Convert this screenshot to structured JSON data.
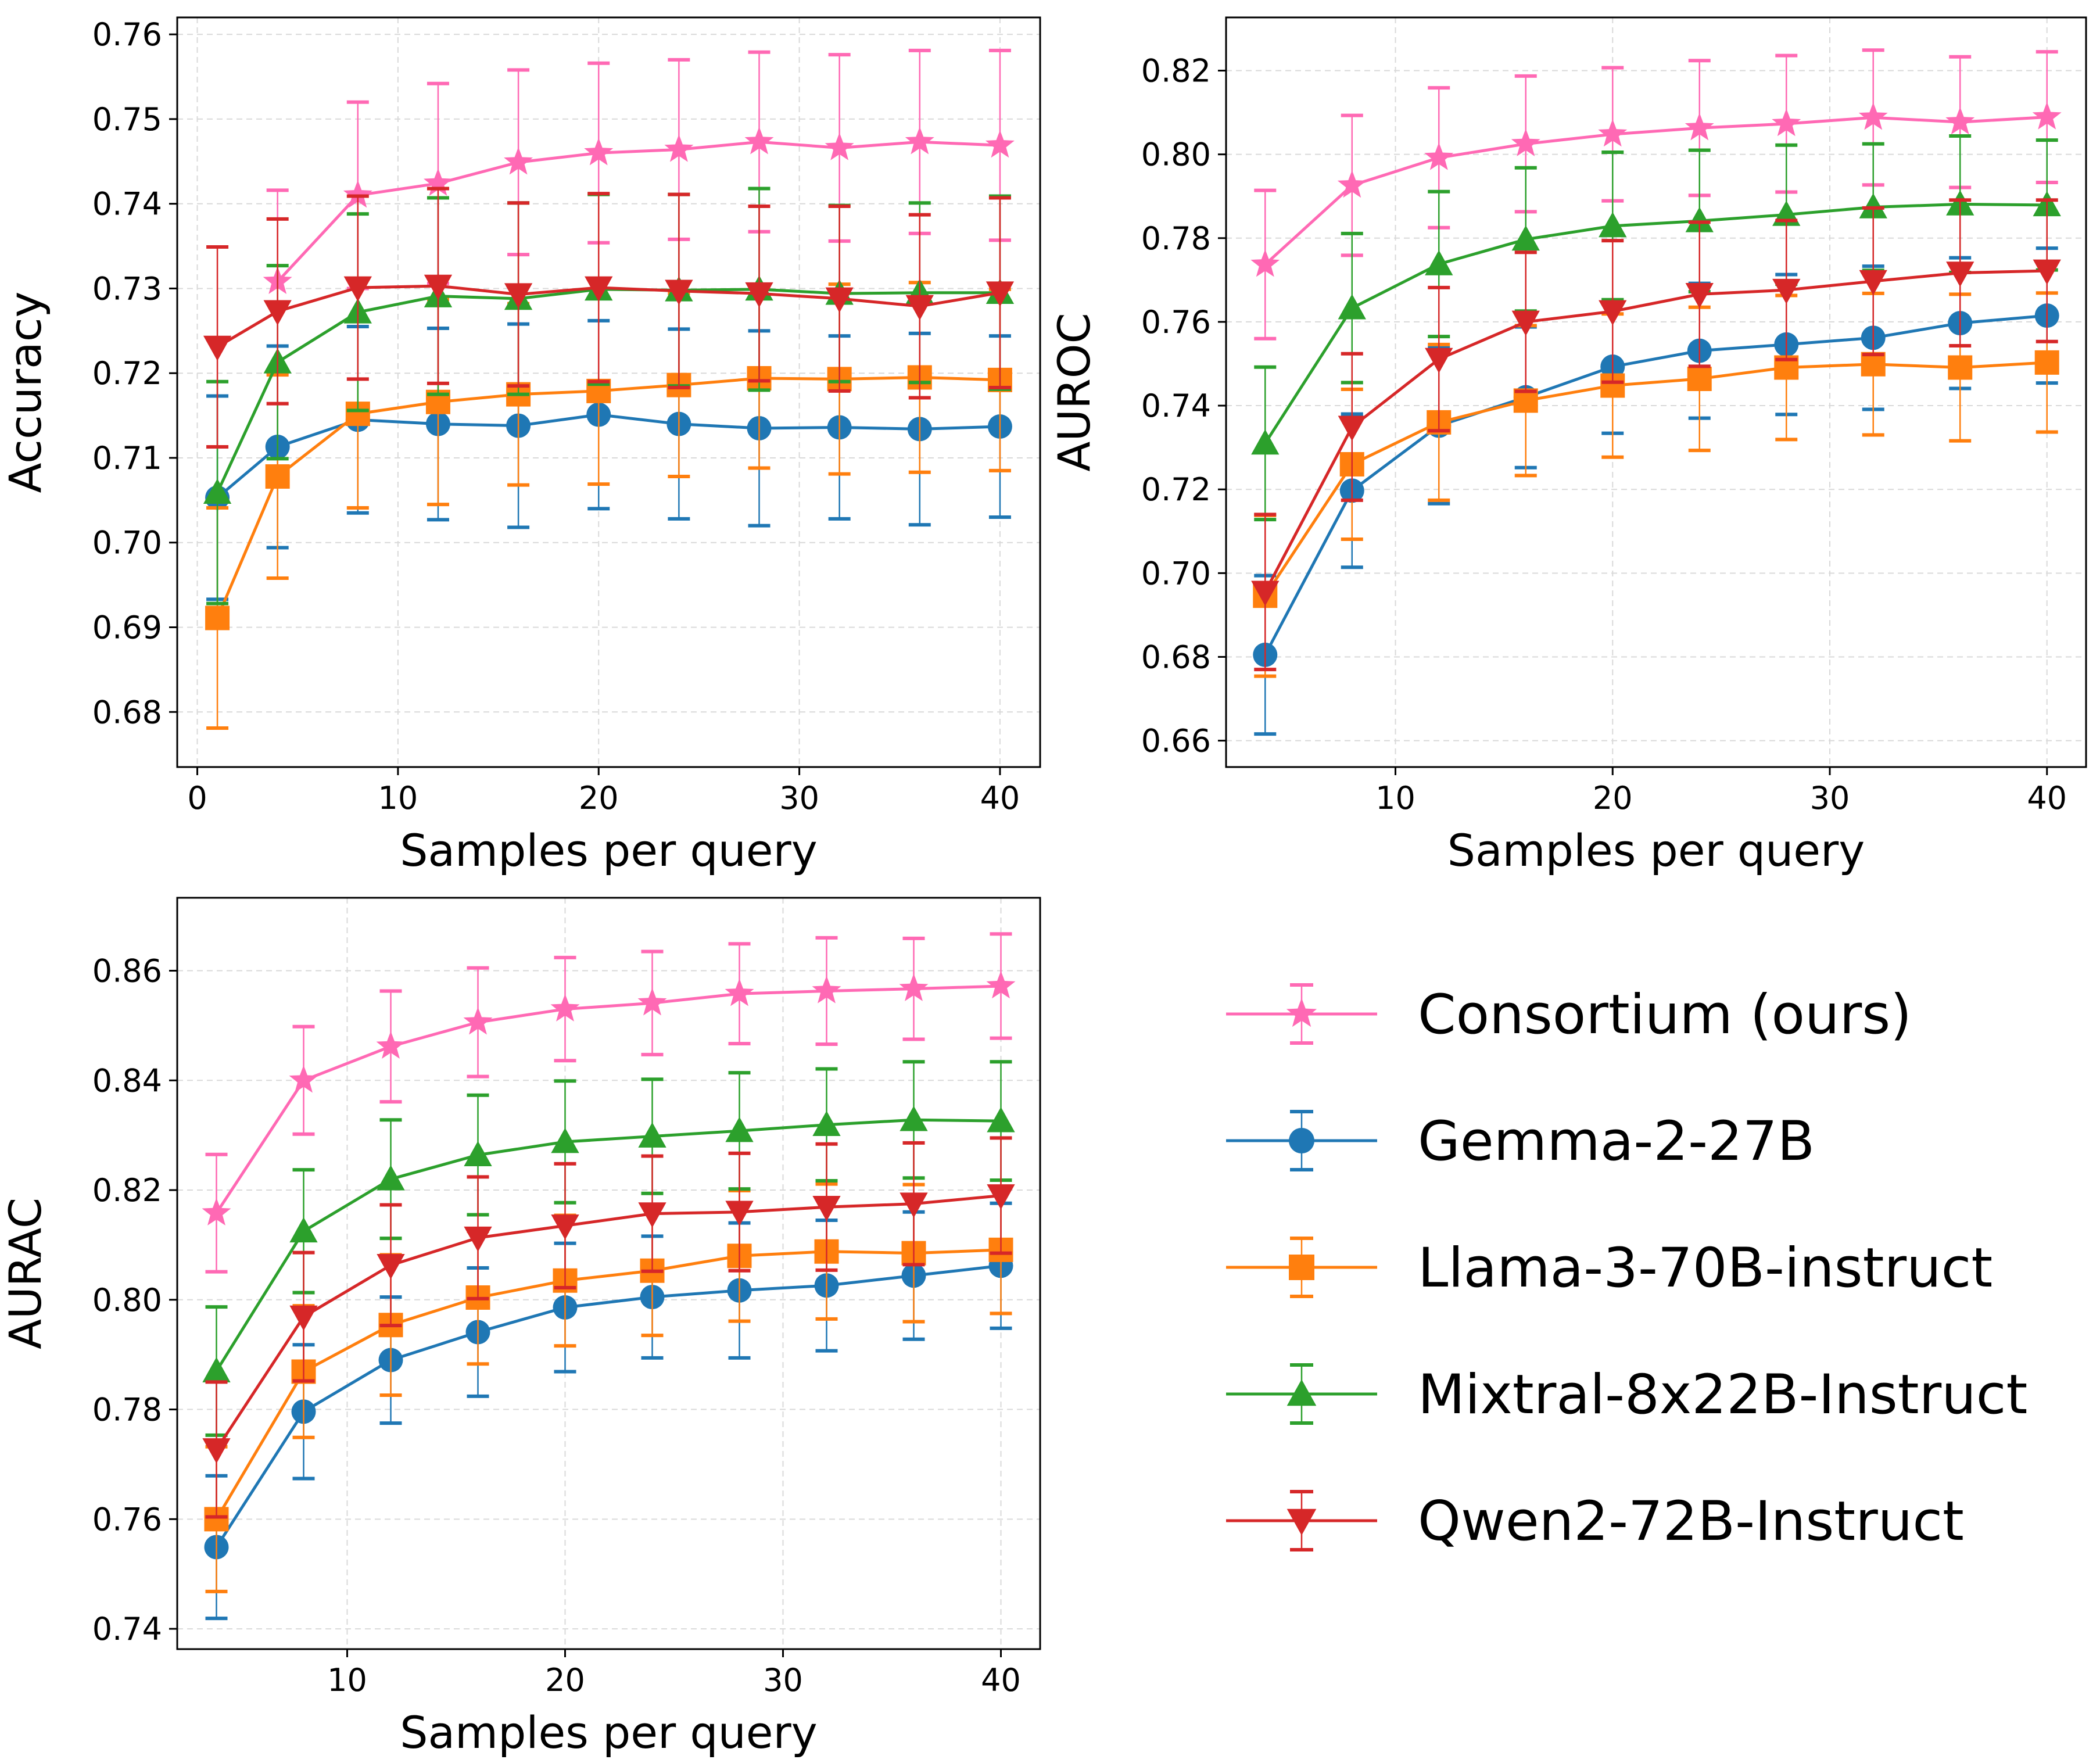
{
  "chart_data": [
    {
      "type": "line",
      "panel": "top-left",
      "xlabel": "Samples per query",
      "ylabel": "Accuracy",
      "xlim": [
        -1,
        42
      ],
      "ylim": [
        0.6735,
        0.762
      ],
      "xticks": [
        0,
        10,
        20,
        30,
        40
      ],
      "yticks": [
        0.68,
        0.69,
        0.7,
        0.71,
        0.72,
        0.73,
        0.74,
        0.75,
        0.76
      ],
      "ytick_decimals": 2,
      "grid": true,
      "x": [
        1,
        4,
        8,
        12,
        16,
        20,
        24,
        28,
        32,
        36,
        40
      ],
      "series": [
        {
          "name": "Consortium (ours)",
          "color": "#ff69b4",
          "marker": "star",
          "values": [
            null,
            0.7308,
            0.741,
            0.7424,
            0.7449,
            0.746,
            0.7464,
            0.7473,
            0.7466,
            0.7473,
            0.7469
          ],
          "err": [
            null,
            0.0108,
            0.011,
            0.0118,
            0.0109,
            0.0106,
            0.0106,
            0.0106,
            0.011,
            0.0108,
            0.0112
          ]
        },
        {
          "name": "Gemma-2-27B",
          "color": "#1f77b4",
          "marker": "circle",
          "values": [
            0.7053,
            0.7113,
            0.7145,
            0.714,
            0.7138,
            0.7151,
            0.714,
            0.7135,
            0.7136,
            0.7134,
            0.7137
          ],
          "err": [
            0.012,
            0.0119,
            0.011,
            0.0113,
            0.012,
            0.0111,
            0.0112,
            0.0115,
            0.0108,
            0.0113,
            0.0107
          ]
        },
        {
          "name": "Llama-3-70B-instruct",
          "color": "#ff7f0e",
          "marker": "square",
          "values": [
            0.6911,
            0.7078,
            0.7152,
            0.7166,
            0.7175,
            0.7179,
            0.7186,
            0.7194,
            0.7193,
            0.7195,
            0.7192
          ],
          "err": [
            0.013,
            0.012,
            0.0111,
            0.0121,
            0.0107,
            0.011,
            0.0108,
            0.0106,
            0.0112,
            0.0112,
            0.0107
          ]
        },
        {
          "name": "Mixtral-8x22B-Instruct",
          "color": "#2ca02c",
          "marker": "triangle-up",
          "values": [
            0.7059,
            0.7213,
            0.7272,
            0.7291,
            0.7288,
            0.7299,
            0.7298,
            0.7299,
            0.7294,
            0.7295,
            0.7295
          ],
          "err": [
            0.0131,
            0.0114,
            0.0116,
            0.0116,
            0.0113,
            0.0112,
            0.0113,
            0.0119,
            0.0104,
            0.0106,
            0.0114
          ]
        },
        {
          "name": "Qwen2-72B-Instruct",
          "color": "#d62728",
          "marker": "triangle-down",
          "values": [
            0.7231,
            0.7273,
            0.7301,
            0.7303,
            0.7293,
            0.7301,
            0.7297,
            0.7294,
            0.7288,
            0.7279,
            0.7295
          ],
          "err": [
            0.0118,
            0.0109,
            0.0108,
            0.0115,
            0.0108,
            0.0111,
            0.0114,
            0.0103,
            0.0109,
            0.0108,
            0.0112
          ]
        }
      ]
    },
    {
      "type": "line",
      "panel": "top-right",
      "xlabel": "Samples per query",
      "ylabel": "AUROC",
      "xlim": [
        2.2,
        41.8
      ],
      "ylim": [
        0.6537,
        0.8327
      ],
      "xticks": [
        10,
        20,
        30,
        40
      ],
      "yticks": [
        0.66,
        0.68,
        0.7,
        0.72,
        0.74,
        0.76,
        0.78,
        0.8,
        0.82
      ],
      "ytick_decimals": 2,
      "grid": true,
      "x": [
        4,
        8,
        12,
        16,
        20,
        24,
        28,
        32,
        36,
        40
      ],
      "series": [
        {
          "name": "Consortium (ours)",
          "color": "#ff69b4",
          "marker": "star",
          "values": [
            0.7737,
            0.7926,
            0.7992,
            0.8025,
            0.8048,
            0.8063,
            0.8073,
            0.8088,
            0.8077,
            0.8089
          ],
          "err": [
            0.0177,
            0.0167,
            0.0167,
            0.0162,
            0.0159,
            0.0161,
            0.0163,
            0.0161,
            0.0156,
            0.0156
          ]
        },
        {
          "name": "Gemma-2-27B",
          "color": "#1f77b4",
          "marker": "circle",
          "values": [
            0.6805,
            0.7197,
            0.7352,
            0.742,
            0.7493,
            0.7531,
            0.7546,
            0.7562,
            0.7597,
            0.7615
          ],
          "err": [
            0.0189,
            0.0183,
            0.0186,
            0.0168,
            0.0159,
            0.0161,
            0.0167,
            0.0171,
            0.0156,
            0.0161
          ]
        },
        {
          "name": "Llama-3-70B-instruct",
          "color": "#ff7f0e",
          "marker": "square",
          "values": [
            0.6946,
            0.726,
            0.736,
            0.7412,
            0.7448,
            0.7464,
            0.7491,
            0.7499,
            0.7491,
            0.7503
          ],
          "err": [
            0.0192,
            0.0179,
            0.0186,
            0.0179,
            0.0171,
            0.0171,
            0.0172,
            0.0169,
            0.0175,
            0.0166
          ]
        },
        {
          "name": "Mixtral-8x22B-Instruct",
          "color": "#2ca02c",
          "marker": "triangle-up",
          "values": [
            0.731,
            0.7633,
            0.7738,
            0.7797,
            0.7829,
            0.7841,
            0.7856,
            0.7874,
            0.7881,
            0.7879
          ],
          "err": [
            0.0182,
            0.0178,
            0.0173,
            0.0171,
            0.0176,
            0.0169,
            0.0166,
            0.0151,
            0.0163,
            0.0155
          ]
        },
        {
          "name": "Qwen2-72B-Instruct",
          "color": "#d62728",
          "marker": "triangle-down",
          "values": [
            0.6955,
            0.7349,
            0.7511,
            0.76,
            0.7625,
            0.7666,
            0.7676,
            0.7697,
            0.7717,
            0.7722
          ],
          "err": [
            0.0185,
            0.0175,
            0.0171,
            0.0166,
            0.0169,
            0.0172,
            0.0166,
            0.0175,
            0.0174,
            0.0169
          ]
        }
      ]
    },
    {
      "type": "line",
      "panel": "bottom-left",
      "xlabel": "Samples per query",
      "ylabel": "AURAC",
      "xlim": [
        2.2,
        41.8
      ],
      "ylim": [
        0.7363,
        0.8733
      ],
      "xticks": [
        10,
        20,
        30,
        40
      ],
      "yticks": [
        0.74,
        0.76,
        0.78,
        0.8,
        0.82,
        0.84,
        0.86
      ],
      "ytick_decimals": 2,
      "grid": true,
      "x": [
        4,
        8,
        12,
        16,
        20,
        24,
        28,
        32,
        36,
        40
      ],
      "series": [
        {
          "name": "Consortium (ours)",
          "color": "#ff69b4",
          "marker": "star",
          "values": [
            0.8158,
            0.84,
            0.8462,
            0.8506,
            0.853,
            0.8541,
            0.8558,
            0.8563,
            0.8567,
            0.8572
          ],
          "err": [
            0.0107,
            0.0098,
            0.0101,
            0.0099,
            0.0094,
            0.0094,
            0.0091,
            0.0097,
            0.0092,
            0.0095
          ]
        },
        {
          "name": "Gemma-2-27B",
          "color": "#1f77b4",
          "marker": "circle",
          "values": [
            0.7549,
            0.7796,
            0.789,
            0.7941,
            0.7986,
            0.8005,
            0.8017,
            0.8026,
            0.8044,
            0.8062
          ],
          "err": [
            0.013,
            0.0122,
            0.0115,
            0.0117,
            0.0117,
            0.0111,
            0.0123,
            0.0119,
            0.0116,
            0.0114
          ]
        },
        {
          "name": "Llama-3-70B-instruct",
          "color": "#ff7f0e",
          "marker": "square",
          "values": [
            0.76,
            0.7869,
            0.7954,
            0.8004,
            0.8035,
            0.8053,
            0.808,
            0.8088,
            0.8085,
            0.8091
          ],
          "err": [
            0.0132,
            0.012,
            0.0128,
            0.0121,
            0.0119,
            0.0118,
            0.0119,
            0.0123,
            0.0125,
            0.0116
          ]
        },
        {
          "name": "Mixtral-8x22B-Instruct",
          "color": "#2ca02c",
          "marker": "triangle-up",
          "values": [
            0.787,
            0.8125,
            0.822,
            0.8264,
            0.8288,
            0.8298,
            0.8308,
            0.8319,
            0.8328,
            0.8326
          ],
          "err": [
            0.0117,
            0.0112,
            0.0108,
            0.0109,
            0.0111,
            0.0104,
            0.0106,
            0.0102,
            0.0106,
            0.0108
          ]
        },
        {
          "name": "Qwen2-72B-Instruct",
          "color": "#d62728",
          "marker": "triangle-down",
          "values": [
            0.7727,
            0.7969,
            0.8063,
            0.8113,
            0.8135,
            0.8157,
            0.816,
            0.8169,
            0.8175,
            0.819
          ],
          "err": [
            0.0123,
            0.0117,
            0.011,
            0.0111,
            0.0113,
            0.0105,
            0.0107,
            0.0115,
            0.0111,
            0.0105
          ]
        }
      ]
    }
  ],
  "legend": {
    "placement": "bottom-right",
    "entries": [
      {
        "label": "Consortium (ours)",
        "color": "#ff69b4",
        "marker": "star"
      },
      {
        "label": "Gemma-2-27B",
        "color": "#1f77b4",
        "marker": "circle"
      },
      {
        "label": "Llama-3-70B-instruct",
        "color": "#ff7f0e",
        "marker": "square"
      },
      {
        "label": "Mixtral-8x22B-Instruct",
        "color": "#2ca02c",
        "marker": "triangle-up"
      },
      {
        "label": "Qwen2-72B-Instruct",
        "color": "#d62728",
        "marker": "triangle-down"
      }
    ]
  }
}
